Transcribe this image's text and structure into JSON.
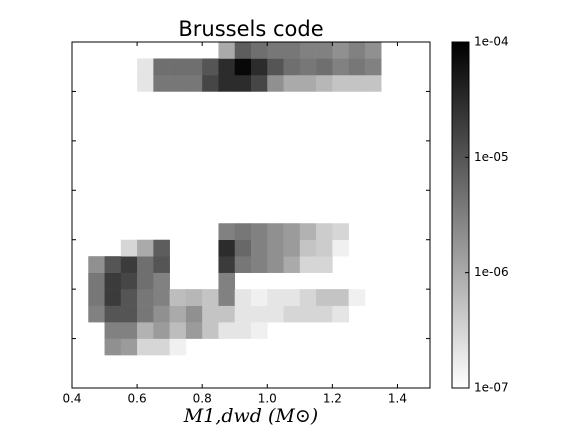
{
  "chart_data": {
    "type": "heatmap",
    "title": "Brussels code",
    "xlabel": "M1,dwd  (M⊙)",
    "xlim": [
      0.4,
      1.5
    ],
    "xticks": [
      0.4,
      0.6,
      0.8,
      {
        "value": 1,
        "label": "1.0"
      },
      1.2,
      1.4
    ],
    "ylim": [
      0,
      21
    ],
    "yticks": [
      3,
      6,
      9,
      12,
      15,
      18
    ],
    "xbins": [
      0.45,
      0.5,
      0.55,
      0.6,
      0.65,
      0.7,
      0.75,
      0.8,
      0.85,
      0.9,
      0.95,
      1,
      1.05,
      1.1,
      1.15,
      1.2,
      1.25,
      1.3,
      1.35
    ],
    "ybins": [
      0,
      1,
      2,
      3,
      4,
      5,
      6,
      7,
      8,
      9,
      10,
      11,
      12,
      13,
      14,
      15,
      16,
      17,
      18,
      19,
      20,
      21
    ],
    "z": [
      [
        null,
        null,
        null,
        null,
        null,
        null,
        null,
        null,
        null,
        null,
        null,
        null,
        null,
        null,
        null,
        null,
        null,
        null
      ],
      [
        null,
        null,
        null,
        null,
        null,
        null,
        null,
        null,
        null,
        null,
        null,
        null,
        null,
        null,
        null,
        null,
        null,
        null
      ],
      [
        null,
        2e-06,
        1.5e-06,
        3e-07,
        3e-07,
        1.5e-07,
        null,
        null,
        null,
        null,
        null,
        null,
        null,
        null,
        null,
        null,
        null,
        null
      ],
      [
        null,
        3e-06,
        3e-06,
        8e-07,
        1.5e-06,
        6e-07,
        1.5e-06,
        5e-07,
        2e-07,
        2e-07,
        1.5e-07,
        null,
        null,
        null,
        null,
        null,
        null,
        null
      ],
      [
        3e-06,
        1e-05,
        1e-05,
        4e-06,
        2e-06,
        1e-06,
        2e-06,
        5e-07,
        5e-07,
        2e-07,
        2e-07,
        2e-07,
        3e-07,
        3e-07,
        3e-07,
        2e-07,
        null,
        null
      ],
      [
        4e-06,
        2e-05,
        1e-05,
        4e-06,
        3e-06,
        6e-07,
        7e-07,
        5e-07,
        3e-06,
        2e-07,
        1.5e-07,
        2e-07,
        2e-07,
        3e-07,
        5e-07,
        5e-07,
        1.5e-07,
        null
      ],
      [
        4e-06,
        2e-05,
        1.5e-05,
        5e-06,
        3e-06,
        null,
        null,
        null,
        3e-06,
        null,
        null,
        null,
        null,
        null,
        null,
        null,
        null,
        null
      ],
      [
        2e-06,
        1e-05,
        2e-05,
        5e-06,
        1e-05,
        null,
        null,
        null,
        2e-05,
        4e-06,
        3e-06,
        2e-06,
        1e-06,
        3e-07,
        3e-07,
        null,
        null,
        null
      ],
      [
        null,
        null,
        3e-07,
        1e-06,
        8e-06,
        null,
        null,
        null,
        3e-05,
        6e-06,
        3e-06,
        2e-06,
        1.5e-06,
        5e-07,
        4e-07,
        1.5e-07,
        null,
        null
      ],
      [
        null,
        null,
        null,
        null,
        null,
        null,
        null,
        null,
        3e-06,
        4e-06,
        3e-06,
        2e-06,
        1.5e-06,
        8e-07,
        4e-07,
        3e-07,
        null,
        null
      ],
      [
        null,
        null,
        null,
        null,
        null,
        null,
        null,
        null,
        null,
        null,
        null,
        null,
        null,
        null,
        null,
        null,
        null,
        null
      ],
      [
        null,
        null,
        null,
        null,
        null,
        null,
        null,
        null,
        null,
        null,
        null,
        null,
        null,
        null,
        null,
        null,
        null,
        null
      ],
      [
        null,
        null,
        null,
        null,
        null,
        null,
        null,
        null,
        null,
        null,
        null,
        null,
        null,
        null,
        null,
        null,
        null,
        null
      ],
      [
        null,
        null,
        null,
        null,
        null,
        null,
        null,
        null,
        null,
        null,
        null,
        null,
        null,
        null,
        null,
        null,
        null,
        null
      ],
      [
        null,
        null,
        null,
        null,
        null,
        null,
        null,
        null,
        null,
        null,
        null,
        null,
        null,
        null,
        null,
        null,
        null,
        null
      ],
      [
        null,
        null,
        null,
        null,
        null,
        null,
        null,
        null,
        null,
        null,
        null,
        null,
        null,
        null,
        null,
        null,
        null,
        null
      ],
      [
        null,
        null,
        null,
        null,
        null,
        null,
        null,
        null,
        null,
        null,
        null,
        null,
        null,
        null,
        null,
        null,
        null,
        null
      ],
      [
        null,
        null,
        null,
        null,
        null,
        null,
        null,
        null,
        null,
        null,
        null,
        null,
        null,
        null,
        null,
        null,
        null,
        null
      ],
      [
        null,
        null,
        null,
        2e-07,
        4e-06,
        4e-06,
        4e-06,
        1.5e-05,
        3e-05,
        3e-05,
        1.5e-05,
        2e-06,
        1e-06,
        1e-06,
        7e-07,
        5e-07,
        5e-07,
        5e-07
      ],
      [
        null,
        null,
        null,
        2e-07,
        5e-06,
        5e-06,
        5e-06,
        1e-05,
        3e-05,
        8e-05,
        3e-05,
        1e-05,
        5e-06,
        4e-06,
        5e-06,
        3e-06,
        4e-06,
        3e-06
      ],
      [
        null,
        null,
        null,
        null,
        null,
        null,
        null,
        null,
        1e-06,
        8e-06,
        5e-06,
        4e-06,
        4e-06,
        3e-06,
        3e-06,
        2e-06,
        3e-06,
        2e-06
      ]
    ],
    "clim": [
      1e-07,
      0.0001
    ],
    "cmap": [
      "#ffffff",
      "#000000"
    ],
    "cticks": [
      {
        "value": 1e-07,
        "label": "1e-07"
      },
      {
        "value": 1e-06,
        "label": "1e-06"
      },
      {
        "value": 1e-05,
        "label": "1e-05"
      },
      {
        "value": 0.0001,
        "label": "1e-04"
      }
    ]
  }
}
